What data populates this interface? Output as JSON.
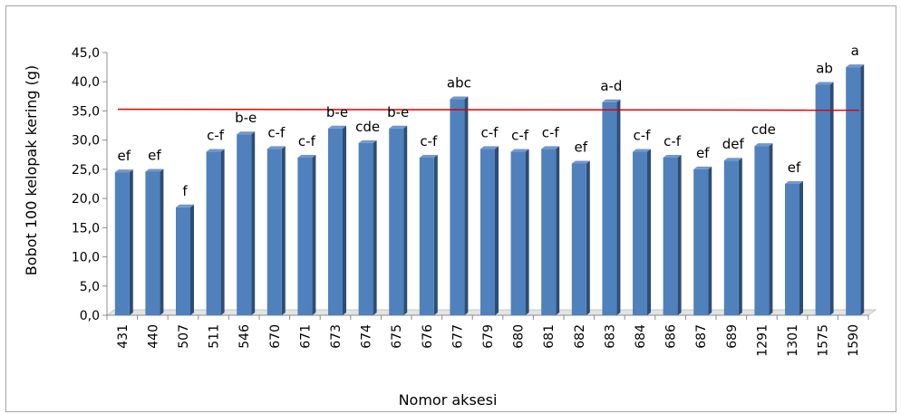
{
  "chart_data": {
    "type": "bar",
    "xlabel": "Nomor aksesi",
    "ylabel": "Bobot 100 kelopak kering (g)",
    "ylim": [
      0,
      45
    ],
    "ytick_step": 5,
    "ytick_labels": [
      "0,0",
      "5,0",
      "10,0",
      "15,0",
      "20,0",
      "25,0",
      "30,0",
      "35,0",
      "40,0",
      "45,0"
    ],
    "reference_line": 35.2,
    "categories": [
      "431",
      "440",
      "507",
      "511",
      "546",
      "670",
      "671",
      "673",
      "674",
      "675",
      "676",
      "677",
      "679",
      "680",
      "681",
      "682",
      "683",
      "684",
      "686",
      "687",
      "689",
      "1291",
      "1301",
      "1575",
      "1590"
    ],
    "values": [
      24.5,
      24.6,
      18.5,
      28.0,
      31.0,
      28.5,
      27.0,
      32.0,
      29.5,
      32.0,
      27.0,
      37.0,
      28.5,
      28.0,
      28.5,
      26.0,
      36.5,
      28.0,
      27.0,
      25.0,
      26.5,
      29.0,
      22.5,
      39.5,
      42.5
    ],
    "data_labels": [
      "ef",
      "ef",
      "f",
      "c-f",
      "b-e",
      "c-f",
      "c-f",
      "b-e",
      "cde",
      "b-e",
      "c-f",
      "abc",
      "c-f",
      "c-f",
      "c-f",
      "ef",
      "a-d",
      "c-f",
      "c-f",
      "ef",
      "def",
      "cde",
      "ef",
      "ab",
      "a"
    ],
    "colors": {
      "bar_front": "#4f81bd",
      "bar_side": "#2c4d75",
      "bar_top": "#7396cc",
      "reference_line": "#e00000",
      "floor": "#c6c6c6"
    },
    "grid": false,
    "legend": "none"
  }
}
